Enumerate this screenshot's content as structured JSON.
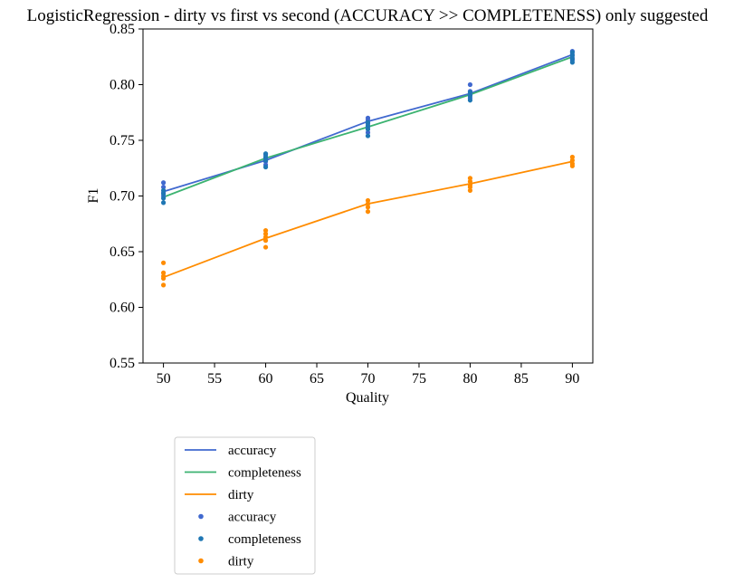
{
  "chart_data": {
    "type": "line",
    "title": "LogisticRegression - dirty vs first vs second (ACCURACY >> COMPLETENESS) only suggested",
    "xlabel": "Quality",
    "ylabel": "F1",
    "xlim": [
      48,
      92
    ],
    "ylim": [
      0.55,
      0.85
    ],
    "xticks": [
      "50",
      "55",
      "60",
      "65",
      "70",
      "75",
      "80",
      "85",
      "90"
    ],
    "yticks": [
      "0.55",
      "0.60",
      "0.65",
      "0.70",
      "0.75",
      "0.80",
      "0.85"
    ],
    "grid": false,
    "legend_position": "below-left-outside",
    "x": [
      50,
      60,
      70,
      80,
      90
    ],
    "series": [
      {
        "name": "accuracy",
        "kind": "line",
        "color": "#4169cf",
        "values": [
          0.704,
          0.732,
          0.767,
          0.792,
          0.827
        ]
      },
      {
        "name": "completeness",
        "kind": "line",
        "color": "#3cb371",
        "values": [
          0.699,
          0.734,
          0.762,
          0.791,
          0.825
        ]
      },
      {
        "name": "dirty",
        "kind": "line",
        "color": "#ff8c00",
        "values": [
          0.627,
          0.662,
          0.693,
          0.711,
          0.731
        ]
      },
      {
        "name": "accuracy",
        "kind": "scatter",
        "color": "#4169cf",
        "points": [
          [
            50,
            0.712
          ],
          [
            50,
            0.708
          ],
          [
            50,
            0.703
          ],
          [
            50,
            0.7
          ],
          [
            60,
            0.737
          ],
          [
            60,
            0.734
          ],
          [
            60,
            0.731
          ],
          [
            60,
            0.728
          ],
          [
            70,
            0.77
          ],
          [
            70,
            0.768
          ],
          [
            70,
            0.765
          ],
          [
            70,
            0.762
          ],
          [
            70,
            0.757
          ],
          [
            80,
            0.8
          ],
          [
            80,
            0.794
          ],
          [
            80,
            0.791
          ],
          [
            80,
            0.788
          ],
          [
            90,
            0.83
          ],
          [
            90,
            0.827
          ],
          [
            90,
            0.824
          ],
          [
            90,
            0.822
          ]
        ]
      },
      {
        "name": "completeness",
        "kind": "scatter",
        "color": "#1f77b4",
        "points": [
          [
            50,
            0.705
          ],
          [
            50,
            0.702
          ],
          [
            50,
            0.698
          ],
          [
            50,
            0.694
          ],
          [
            60,
            0.738
          ],
          [
            60,
            0.735
          ],
          [
            60,
            0.732
          ],
          [
            60,
            0.726
          ],
          [
            70,
            0.766
          ],
          [
            70,
            0.763
          ],
          [
            70,
            0.76
          ],
          [
            70,
            0.754
          ],
          [
            80,
            0.793
          ],
          [
            80,
            0.79
          ],
          [
            80,
            0.786
          ],
          [
            90,
            0.829
          ],
          [
            90,
            0.826
          ],
          [
            90,
            0.823
          ],
          [
            90,
            0.82
          ]
        ]
      },
      {
        "name": "dirty",
        "kind": "scatter",
        "color": "#ff8c00",
        "points": [
          [
            50,
            0.64
          ],
          [
            50,
            0.631
          ],
          [
            50,
            0.628
          ],
          [
            50,
            0.626
          ],
          [
            50,
            0.62
          ],
          [
            60,
            0.669
          ],
          [
            60,
            0.666
          ],
          [
            60,
            0.663
          ],
          [
            60,
            0.66
          ],
          [
            60,
            0.654
          ],
          [
            70,
            0.696
          ],
          [
            70,
            0.693
          ],
          [
            70,
            0.69
          ],
          [
            70,
            0.686
          ],
          [
            80,
            0.716
          ],
          [
            80,
            0.713
          ],
          [
            80,
            0.71
          ],
          [
            80,
            0.708
          ],
          [
            80,
            0.705
          ],
          [
            90,
            0.735
          ],
          [
            90,
            0.732
          ],
          [
            90,
            0.729
          ],
          [
            90,
            0.727
          ]
        ]
      }
    ]
  }
}
